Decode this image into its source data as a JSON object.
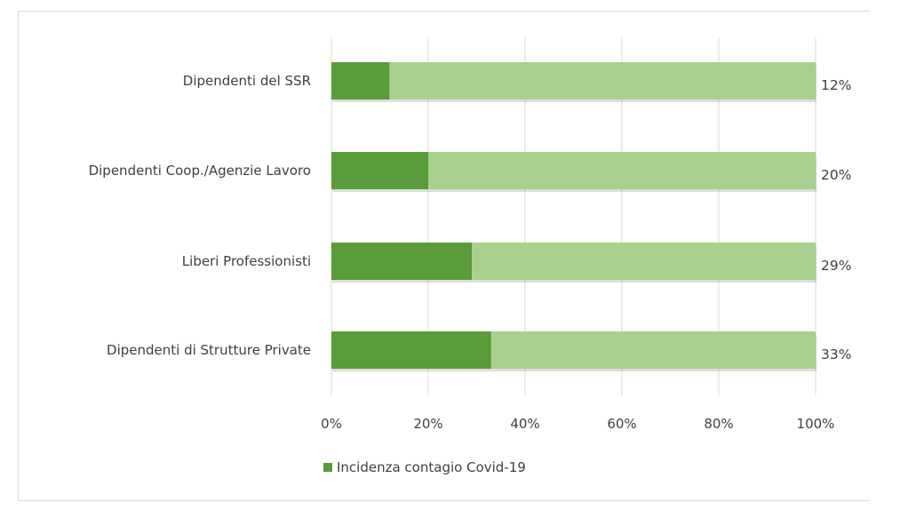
{
  "chart_data": {
    "type": "bar",
    "orientation": "horizontal",
    "stacked": "100%",
    "categories": [
      "Dipendenti del SSR",
      "Dipendenti Coop./Agenzie Lavoro",
      "Liberi Professionisti",
      "Dipendenti di Strutture Private"
    ],
    "series": [
      {
        "name": "Incidenza contagio Covid-19",
        "values": [
          0.12,
          0.2,
          0.29,
          0.33
        ],
        "color": "#5a9b3a"
      },
      {
        "values": [
          0.88,
          0.8,
          0.71,
          0.67
        ],
        "color": "#a9d18e"
      }
    ],
    "data_labels": [
      "12%",
      "20%",
      "29%",
      "33%"
    ],
    "x_ticks": [
      "0%",
      "20%",
      "40%",
      "60%",
      "80%",
      "100%"
    ],
    "xlim": [
      0,
      1
    ],
    "grid": true,
    "legend": "bottom-left",
    "title": "",
    "xlabel": "",
    "ylabel": ""
  }
}
